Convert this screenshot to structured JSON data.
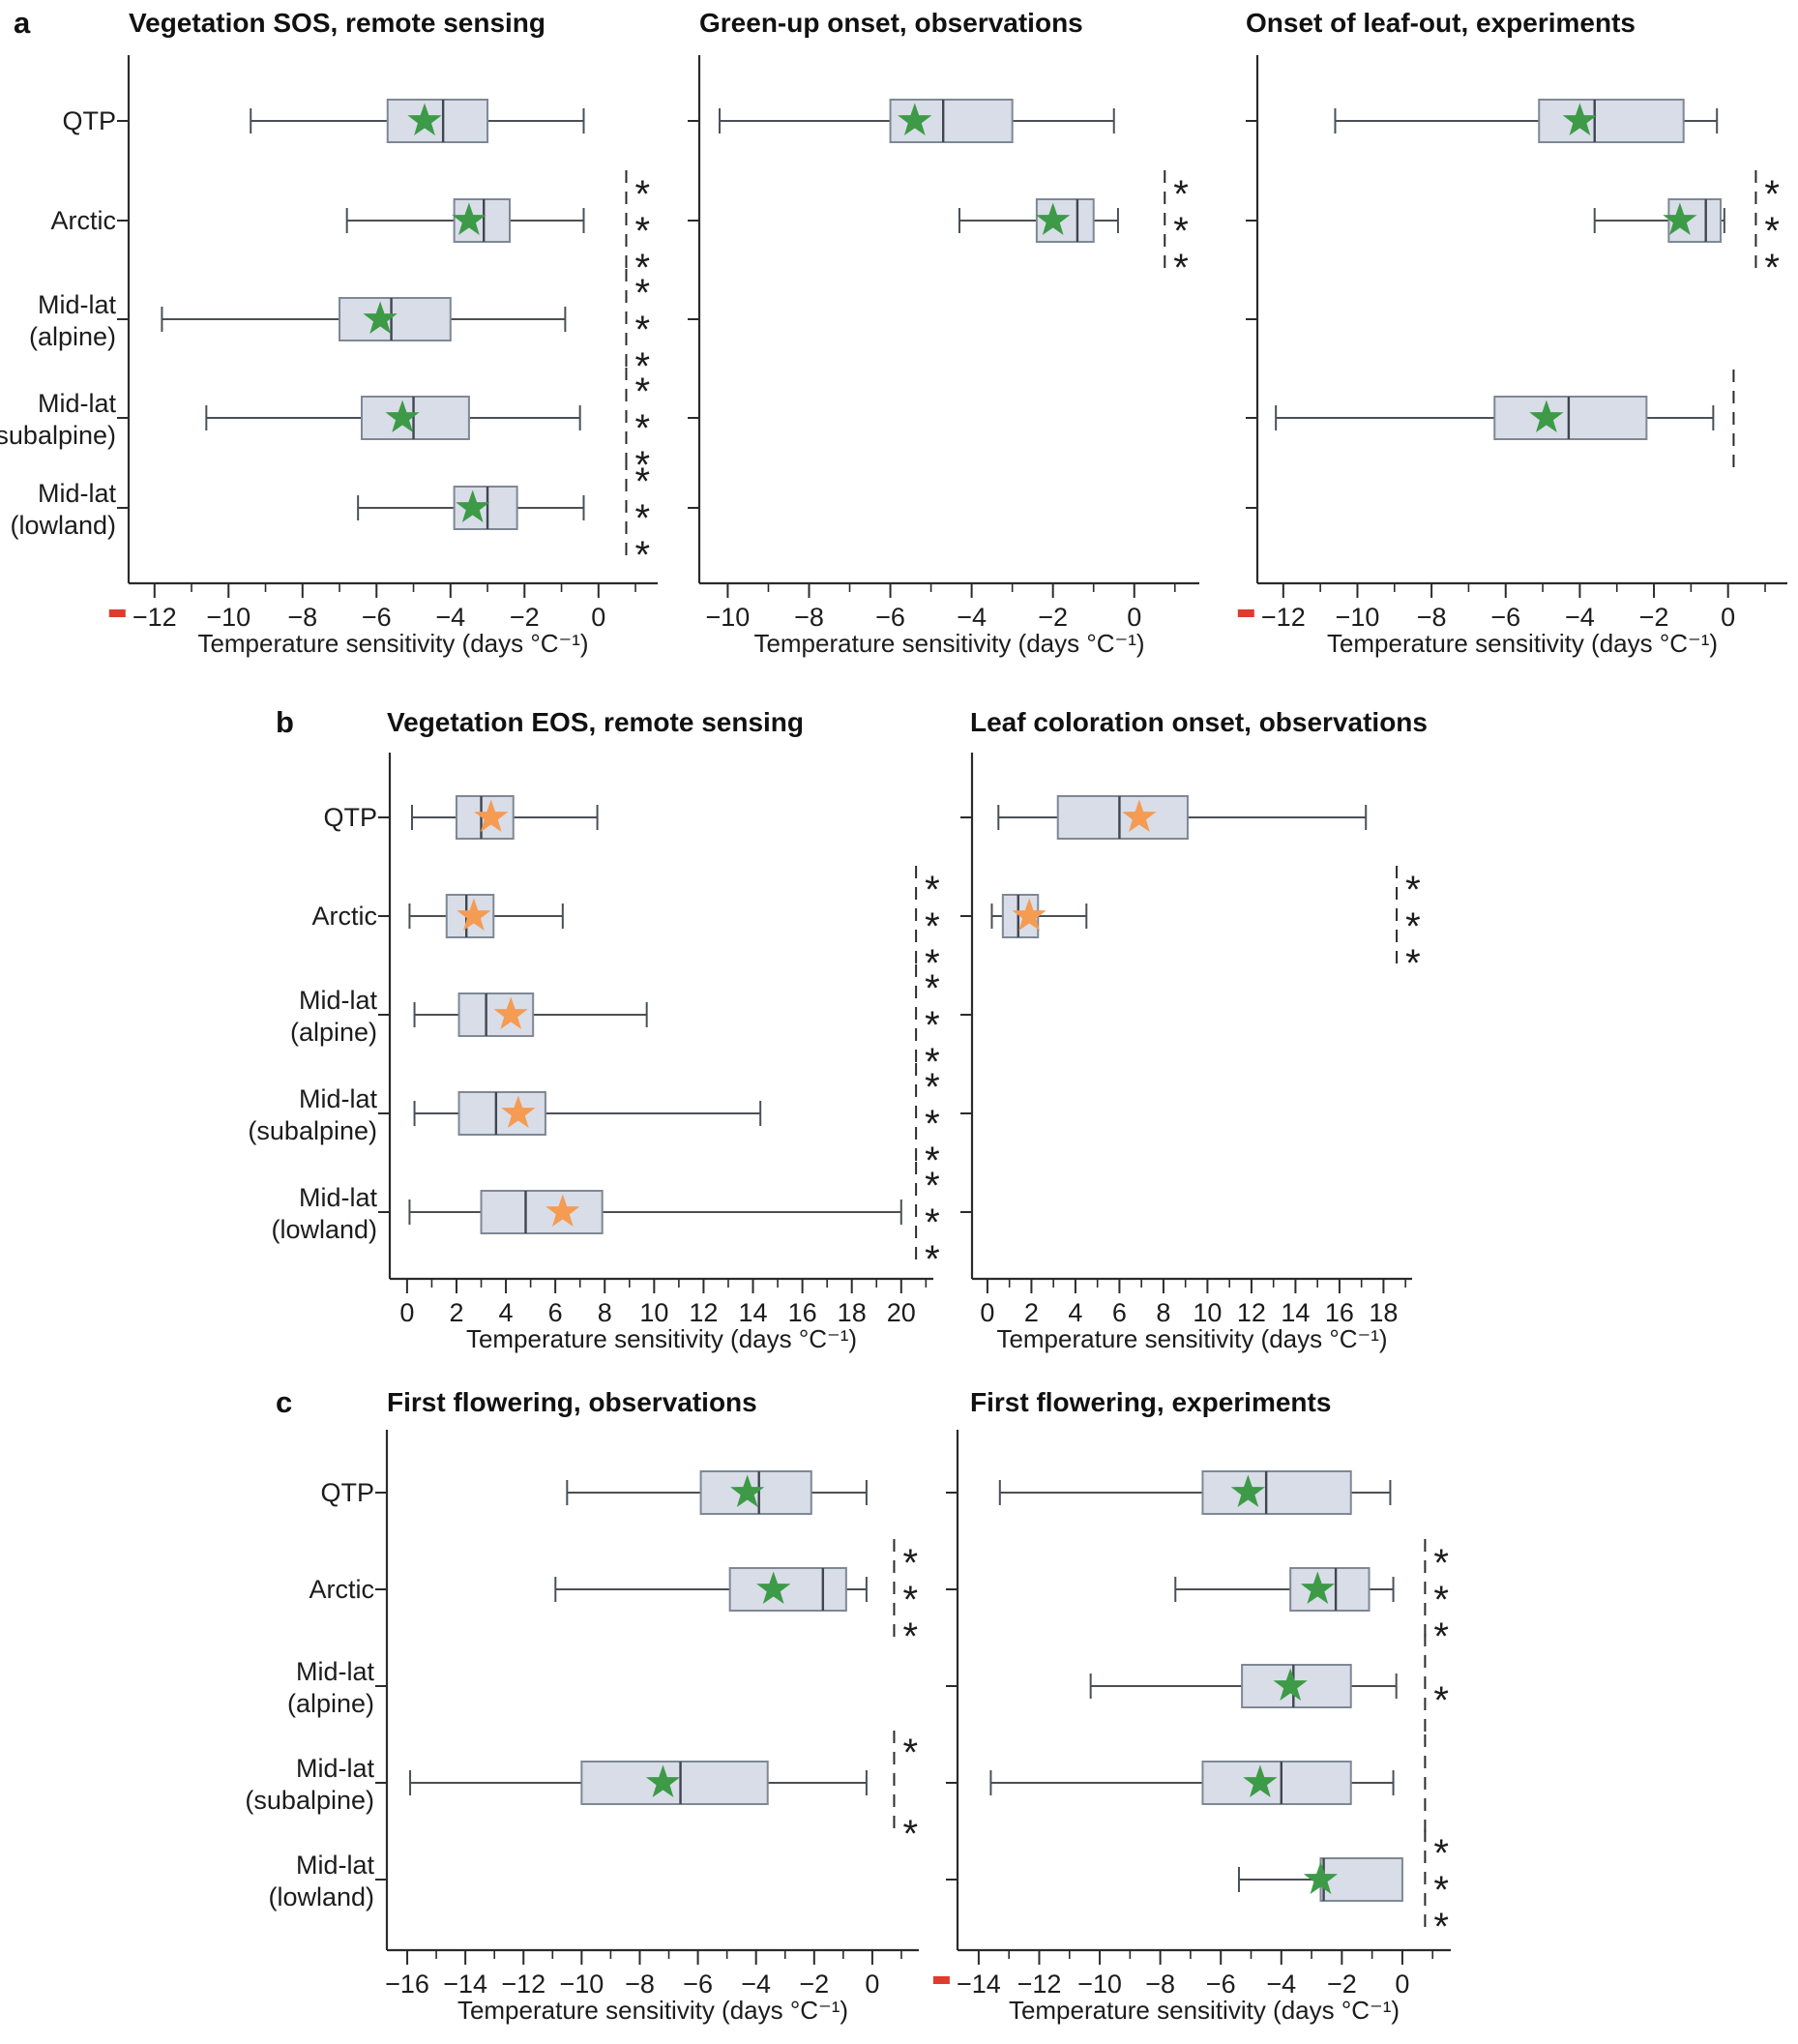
{
  "figure": {
    "panel_letters": {
      "a": "a",
      "b": "b",
      "c": "c"
    },
    "xlabel": "Temperature sensitivity (days °C⁻¹)",
    "categories": [
      [
        "QTP"
      ],
      [
        "Arctic"
      ],
      [
        "Mid-lat",
        "(alpine)"
      ],
      [
        "Mid-lat",
        "(subalpine)"
      ],
      [
        "Mid-lat",
        "(lowland)"
      ]
    ]
  },
  "colors": {
    "box_fill": "#d8dde8",
    "box_stroke": "#7f8894",
    "median": "#3f4650",
    "whisker": "#4a5056",
    "axis": "#2b2b2b",
    "text": "#1c1c1c",
    "star_green": "#3d9a47",
    "star_orange": "#f59b52",
    "red_mark": "#e03b2f",
    "asterisk": "#1c1c1c"
  },
  "chart_data": [
    {
      "id": "a1",
      "type": "boxplot",
      "orientation": "horizontal",
      "title": "Vegetation SOS, remote sensing",
      "star_color": "#3d9a47",
      "x_range": [
        -12.7,
        1.6
      ],
      "x_ticks": [
        -12,
        -10,
        -8,
        -6,
        -4,
        -2,
        0
      ],
      "x_tick_labels": [
        "−12",
        "−10",
        "−8",
        "−6",
        "−4",
        "−2",
        "0"
      ],
      "first_tick_red": true,
      "minor_tick_step": 1,
      "show_category_labels": true,
      "annotation_x": 0.75,
      "boxes": [
        {
          "category": "QTP",
          "whisker_low": -9.4,
          "q1": -5.7,
          "median": -4.2,
          "mean": -4.7,
          "q3": -3.0,
          "whisker_high": -0.4,
          "annotation": "none"
        },
        {
          "category": "Arctic",
          "whisker_low": -6.8,
          "q1": -3.9,
          "median": -3.1,
          "mean": -3.5,
          "q3": -2.4,
          "whisker_high": -0.4,
          "annotation": "stars3"
        },
        {
          "category": "Mid-lat (alpine)",
          "whisker_low": -11.8,
          "q1": -7.0,
          "median": -5.6,
          "mean": -5.9,
          "q3": -4.0,
          "whisker_high": -0.9,
          "annotation": "stars3"
        },
        {
          "category": "Mid-lat (subalpine)",
          "whisker_low": -10.6,
          "q1": -6.4,
          "median": -5.0,
          "mean": -5.3,
          "q3": -3.5,
          "whisker_high": -0.5,
          "annotation": "stars3"
        },
        {
          "category": "Mid-lat (lowland)",
          "whisker_low": -6.5,
          "q1": -3.9,
          "median": -3.0,
          "mean": -3.4,
          "q3": -2.2,
          "whisker_high": -0.4,
          "annotation": "stars3"
        }
      ]
    },
    {
      "id": "a2",
      "type": "boxplot",
      "orientation": "horizontal",
      "title": "Green-up onset, observations",
      "star_color": "#3d9a47",
      "x_range": [
        -10.7,
        1.6
      ],
      "x_ticks": [
        -10,
        -8,
        -6,
        -4,
        -2,
        0
      ],
      "x_tick_labels": [
        "−10",
        "−8",
        "−6",
        "−4",
        "−2",
        "0"
      ],
      "first_tick_red": false,
      "minor_tick_step": 1,
      "show_category_labels": false,
      "annotation_x": 0.75,
      "boxes": [
        {
          "category": "QTP",
          "whisker_low": -10.2,
          "q1": -6.0,
          "median": -4.7,
          "mean": -5.4,
          "q3": -3.0,
          "whisker_high": -0.5,
          "annotation": "none"
        },
        {
          "category": "Arctic",
          "whisker_low": -4.3,
          "q1": -2.4,
          "median": -1.4,
          "mean": -2.0,
          "q3": -1.0,
          "whisker_high": -0.4,
          "annotation": "stars3"
        },
        null,
        null,
        null
      ]
    },
    {
      "id": "a3",
      "type": "boxplot",
      "orientation": "horizontal",
      "title": "Onset of leaf-out, experiments",
      "star_color": "#3d9a47",
      "x_range": [
        -12.7,
        1.6
      ],
      "x_ticks": [
        -12,
        -10,
        -8,
        -6,
        -4,
        -2,
        0
      ],
      "x_tick_labels": [
        "−12",
        "−10",
        "−8",
        "−6",
        "−4",
        "−2",
        "0"
      ],
      "first_tick_red": true,
      "minor_tick_step": 1,
      "show_category_labels": false,
      "annotation_x": 0.75,
      "boxes": [
        {
          "category": "QTP",
          "whisker_low": -10.6,
          "q1": -5.1,
          "median": -3.6,
          "mean": -4.0,
          "q3": -1.2,
          "whisker_high": -0.3,
          "annotation": "none"
        },
        {
          "category": "Arctic",
          "whisker_low": -3.6,
          "q1": -1.6,
          "median": -0.6,
          "mean": -1.3,
          "q3": -0.2,
          "whisker_high": -0.1,
          "annotation": "stars3"
        },
        null,
        {
          "category": "Mid-lat (subalpine)",
          "whisker_low": -12.2,
          "q1": -6.3,
          "median": -4.3,
          "mean": -4.9,
          "q3": -2.2,
          "whisker_high": -0.4,
          "annotation": "dashed",
          "annotation_x": 0.15
        },
        null
      ]
    },
    {
      "id": "b1",
      "type": "boxplot",
      "orientation": "horizontal",
      "title": "Vegetation EOS, remote sensing",
      "star_color": "#f59b52",
      "x_range": [
        -0.7,
        21.3
      ],
      "x_ticks": [
        0,
        2,
        4,
        6,
        8,
        10,
        12,
        14,
        16,
        18,
        20
      ],
      "x_tick_labels": [
        "0",
        "2",
        "4",
        "6",
        "8",
        "10",
        "12",
        "14",
        "16",
        "18",
        "20"
      ],
      "first_tick_red": false,
      "minor_tick_step": 1,
      "show_category_labels": true,
      "annotation_x": 20.6,
      "boxes": [
        {
          "category": "QTP",
          "whisker_low": 0.2,
          "q1": 2.0,
          "median": 3.0,
          "mean": 3.4,
          "q3": 4.3,
          "whisker_high": 7.7,
          "annotation": "none"
        },
        {
          "category": "Arctic",
          "whisker_low": 0.1,
          "q1": 1.6,
          "median": 2.4,
          "mean": 2.7,
          "q3": 3.5,
          "whisker_high": 6.3,
          "annotation": "stars3"
        },
        {
          "category": "Mid-lat (alpine)",
          "whisker_low": 0.3,
          "q1": 2.1,
          "median": 3.2,
          "mean": 4.2,
          "q3": 5.1,
          "whisker_high": 9.7,
          "annotation": "stars3"
        },
        {
          "category": "Mid-lat (subalpine)",
          "whisker_low": 0.3,
          "q1": 2.1,
          "median": 3.6,
          "mean": 4.5,
          "q3": 5.6,
          "whisker_high": 14.3,
          "annotation": "stars3"
        },
        {
          "category": "Mid-lat (lowland)",
          "whisker_low": 0.1,
          "q1": 3.0,
          "median": 4.8,
          "mean": 6.3,
          "q3": 7.9,
          "whisker_high": 20.0,
          "annotation": "stars3"
        }
      ]
    },
    {
      "id": "b2",
      "type": "boxplot",
      "orientation": "horizontal",
      "title": "Leaf coloration onset, observations",
      "star_color": "#f59b52",
      "x_range": [
        -0.7,
        19.3
      ],
      "x_ticks": [
        0,
        2,
        4,
        6,
        8,
        10,
        12,
        14,
        16,
        18
      ],
      "x_tick_labels": [
        "0",
        "2",
        "4",
        "6",
        "8",
        "10",
        "12",
        "14",
        "16",
        "18"
      ],
      "first_tick_red": false,
      "minor_tick_step": 1,
      "show_category_labels": false,
      "annotation_x": 18.6,
      "boxes": [
        {
          "category": "QTP",
          "whisker_low": 0.5,
          "q1": 3.2,
          "median": 6.0,
          "mean": 6.9,
          "q3": 9.1,
          "whisker_high": 17.2,
          "annotation": "none"
        },
        {
          "category": "Arctic",
          "whisker_low": 0.2,
          "q1": 0.7,
          "median": 1.4,
          "mean": 1.9,
          "q3": 2.3,
          "whisker_high": 4.5,
          "annotation": "stars3"
        },
        null,
        null,
        null
      ]
    },
    {
      "id": "c1",
      "type": "boxplot",
      "orientation": "horizontal",
      "title": "First flowering, observations",
      "star_color": "#3d9a47",
      "x_range": [
        -16.7,
        1.6
      ],
      "x_ticks": [
        -16,
        -14,
        -12,
        -10,
        -8,
        -6,
        -4,
        -2,
        0
      ],
      "x_tick_labels": [
        "−16",
        "−14",
        "−12",
        "−10",
        "−8",
        "−6",
        "−4",
        "−2",
        "0"
      ],
      "first_tick_red": false,
      "minor_tick_step": 1,
      "show_category_labels": true,
      "annotation_x": 0.75,
      "boxes": [
        {
          "category": "QTP",
          "whisker_low": -10.5,
          "q1": -5.9,
          "median": -3.9,
          "mean": -4.3,
          "q3": -2.1,
          "whisker_high": -0.2,
          "annotation": "none"
        },
        {
          "category": "Arctic",
          "whisker_low": -10.9,
          "q1": -4.9,
          "median": -1.7,
          "mean": -3.4,
          "q3": -0.9,
          "whisker_high": -0.2,
          "annotation": "stars3"
        },
        null,
        {
          "category": "Mid-lat (subalpine)",
          "whisker_low": -15.9,
          "q1": -10.0,
          "median": -6.6,
          "mean": -7.2,
          "q3": -3.6,
          "whisker_high": -0.2,
          "annotation": "stars2_gap"
        },
        null
      ]
    },
    {
      "id": "c2",
      "type": "boxplot",
      "orientation": "horizontal",
      "title": "First flowering, experiments",
      "star_color": "#3d9a47",
      "x_range": [
        -14.7,
        1.6
      ],
      "x_ticks": [
        -14,
        -12,
        -10,
        -8,
        -6,
        -4,
        -2,
        0
      ],
      "x_tick_labels": [
        "−14",
        "−12",
        "−10",
        "−8",
        "−6",
        "−4",
        "−2",
        "0"
      ],
      "first_tick_red": true,
      "minor_tick_step": 1,
      "show_category_labels": false,
      "annotation_x": 0.75,
      "boxes": [
        {
          "category": "QTP",
          "whisker_low": -13.3,
          "q1": -6.6,
          "median": -4.5,
          "mean": -5.1,
          "q3": -1.7,
          "whisker_high": -0.4,
          "annotation": "none"
        },
        {
          "category": "Arctic",
          "whisker_low": -7.5,
          "q1": -3.7,
          "median": -2.2,
          "mean": -2.8,
          "q3": -1.1,
          "whisker_high": -0.3,
          "annotation": "stars3"
        },
        {
          "category": "Mid-lat (alpine)",
          "whisker_low": -10.3,
          "q1": -5.3,
          "median": -3.6,
          "mean": -3.7,
          "q3": -1.7,
          "whisker_high": -0.2,
          "annotation": "star1"
        },
        {
          "category": "Mid-lat (subalpine)",
          "whisker_low": -13.6,
          "q1": -6.6,
          "median": -4.0,
          "mean": -4.7,
          "q3": -1.7,
          "whisker_high": -0.3,
          "annotation": "dashed"
        },
        {
          "category": "Mid-lat (lowland)",
          "whisker_low": -5.4,
          "q1": -2.7,
          "median": -2.6,
          "mean": -2.7,
          "q3": 0.0,
          "whisker_high": 0.0,
          "annotation": "stars3"
        }
      ]
    }
  ]
}
